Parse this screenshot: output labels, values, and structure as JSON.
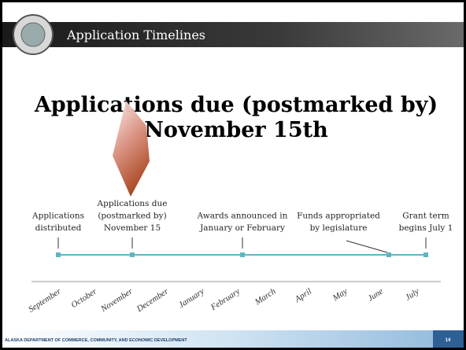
{
  "header": {
    "title": "Application Timelines"
  },
  "heading": {
    "lines": [
      "Applications due (postmarked by)",
      "November 15th"
    ]
  },
  "events": [
    {
      "lines": [
        "Applications",
        "distributed"
      ]
    },
    {
      "lines": [
        "Applications due",
        "(postmarked by)",
        "November 15"
      ]
    },
    {
      "lines": [
        "Awards announced in",
        "January or February"
      ]
    },
    {
      "lines": [
        "Funds appropriated",
        "by legislature"
      ]
    },
    {
      "lines": [
        "Grant term",
        "begins July 1"
      ]
    }
  ],
  "months": [
    "September",
    "October",
    "November",
    "December",
    "January",
    "February",
    "March",
    "April",
    "May",
    "June",
    "July"
  ],
  "footer": {
    "text": "ALASKA DEPARTMENT OF COMMERCE, COMMUNITY, AND ECONOMIC DEVELOPMENT",
    "page": "14"
  }
}
